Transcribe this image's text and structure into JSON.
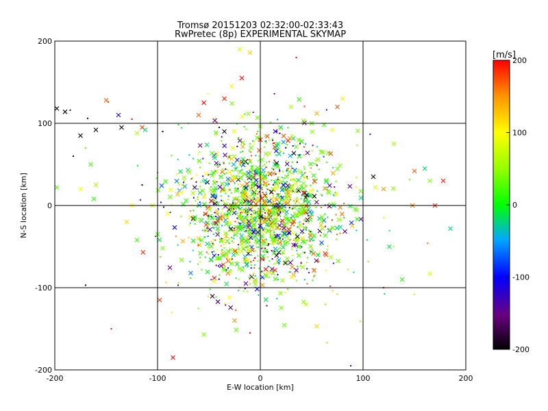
{
  "chart_data": {
    "type": "scatter",
    "title": "Tromsø 20151203 02:32:00-02:33:43",
    "subtitle": "RwPretec (8p) EXPERIMENTAL SKYMAP",
    "xlabel": "E-W location [km]",
    "ylabel": "N-S location [km]",
    "xlim": [
      -200,
      200
    ],
    "ylim": [
      -200,
      200
    ],
    "x_ticks": [
      "-200",
      "-100",
      "0",
      "100",
      "200"
    ],
    "y_ticks": [
      "-200",
      "-100",
      "0",
      "100",
      "200"
    ],
    "grid": true,
    "colorbar": {
      "label": "[m/s]",
      "range": [
        -200,
        200
      ],
      "ticks": [
        "-200",
        "-100",
        "0",
        "100",
        "200"
      ],
      "colormap": "rainbow",
      "placement": "right"
    },
    "marker_styles": [
      "x",
      "dot"
    ],
    "points": [
      [
        -198,
        118,
        -200,
        "x"
      ],
      [
        -190,
        114,
        -200,
        "x"
      ],
      [
        -185,
        116,
        -190,
        "dot"
      ],
      [
        -175,
        85,
        -200,
        "x"
      ],
      [
        -168,
        106,
        -200,
        "dot"
      ],
      [
        -160,
        92,
        -200,
        "x"
      ],
      [
        -150,
        128,
        170,
        "x"
      ],
      [
        -148,
        126,
        180,
        "dot"
      ],
      [
        -138,
        110,
        -120,
        "x"
      ],
      [
        -135,
        95,
        -200,
        "x"
      ],
      [
        -125,
        105,
        200,
        "dot"
      ],
      [
        -120,
        88,
        60,
        "x"
      ],
      [
        -115,
        95,
        180,
        "x"
      ],
      [
        -112,
        92,
        -20,
        "x"
      ],
      [
        -182,
        60,
        -200,
        "dot"
      ],
      [
        -170,
        70,
        30,
        "dot"
      ],
      [
        -165,
        50,
        20,
        "x"
      ],
      [
        -162,
        8,
        10,
        "x"
      ],
      [
        -160,
        25,
        60,
        "x"
      ],
      [
        -175,
        20,
        100,
        "x"
      ],
      [
        -198,
        22,
        30,
        "x"
      ],
      [
        -125,
        0,
        100,
        "x"
      ],
      [
        -120,
        -42,
        20,
        "x"
      ],
      [
        -130,
        -20,
        120,
        "x"
      ],
      [
        -115,
        25,
        -200,
        "dot"
      ],
      [
        -100,
        40,
        160,
        "dot"
      ],
      [
        -95,
        -52,
        40,
        "x"
      ],
      [
        -100,
        -35,
        20,
        "x"
      ],
      [
        -105,
        0,
        80,
        "x"
      ],
      [
        -90,
        -10,
        100,
        "x"
      ],
      [
        -170,
        -97,
        -200,
        "dot"
      ],
      [
        -98,
        -115,
        180,
        "x"
      ],
      [
        -85,
        -185,
        200,
        "x"
      ],
      [
        -145,
        -150,
        200,
        "dot"
      ],
      [
        -55,
        -157,
        40,
        "x"
      ],
      [
        -25,
        -140,
        150,
        "x"
      ],
      [
        -10,
        -155,
        200,
        "dot"
      ],
      [
        55,
        -147,
        120,
        "x"
      ],
      [
        65,
        -167,
        40,
        "dot"
      ],
      [
        88,
        -195,
        -120,
        "dot"
      ],
      [
        -80,
        -97,
        -140,
        "dot"
      ],
      [
        -30,
        -112,
        100,
        "x"
      ],
      [
        45,
        -120,
        60,
        "dot"
      ],
      [
        120,
        -100,
        200,
        "dot"
      ],
      [
        138,
        -90,
        10,
        "x"
      ],
      [
        165,
        -83,
        80,
        "x"
      ],
      [
        150,
        -108,
        60,
        "dot"
      ],
      [
        105,
        -68,
        140,
        "dot"
      ],
      [
        -28,
        145,
        100,
        "x"
      ],
      [
        -20,
        190,
        80,
        "x"
      ],
      [
        -10,
        186,
        120,
        "x"
      ],
      [
        35,
        180,
        200,
        "dot"
      ],
      [
        75,
        120,
        170,
        "x"
      ],
      [
        80,
        130,
        90,
        "x"
      ],
      [
        -95,
        90,
        -200,
        "dot"
      ],
      [
        130,
        75,
        50,
        "x"
      ],
      [
        150,
        42,
        170,
        "x"
      ],
      [
        160,
        45,
        -20,
        "x"
      ],
      [
        165,
        30,
        40,
        "x"
      ],
      [
        178,
        30,
        190,
        "x"
      ],
      [
        170,
        0,
        190,
        "x"
      ],
      [
        148,
        0,
        160,
        "x"
      ],
      [
        185,
        -28,
        -20,
        "x"
      ],
      [
        120,
        20,
        150,
        "x"
      ],
      [
        110,
        35,
        -200,
        "x"
      ],
      [
        112,
        22,
        80,
        "x"
      ],
      [
        120,
        -15,
        80,
        "dot"
      ],
      [
        130,
        -50,
        60,
        "dot"
      ],
      [
        -55,
        125,
        200,
        "x"
      ],
      [
        -35,
        130,
        190,
        "x"
      ],
      [
        -18,
        155,
        200,
        "x"
      ],
      [
        -60,
        110,
        170,
        "x"
      ],
      [
        20,
        95,
        -20,
        "x"
      ],
      [
        50,
        100,
        30,
        "x"
      ],
      [
        30,
        120,
        60,
        "x"
      ],
      [
        0,
        80,
        200,
        "x"
      ],
      [
        -40,
        95,
        -200,
        "dot"
      ],
      [
        55,
        112,
        140,
        "x"
      ],
      [
        -70,
        100,
        40,
        "dot"
      ],
      [
        70,
        92,
        90,
        "x"
      ]
    ],
    "cluster": {
      "center": [
        0,
        -5
      ],
      "spread": [
        38,
        45
      ],
      "count": 1700
    }
  }
}
